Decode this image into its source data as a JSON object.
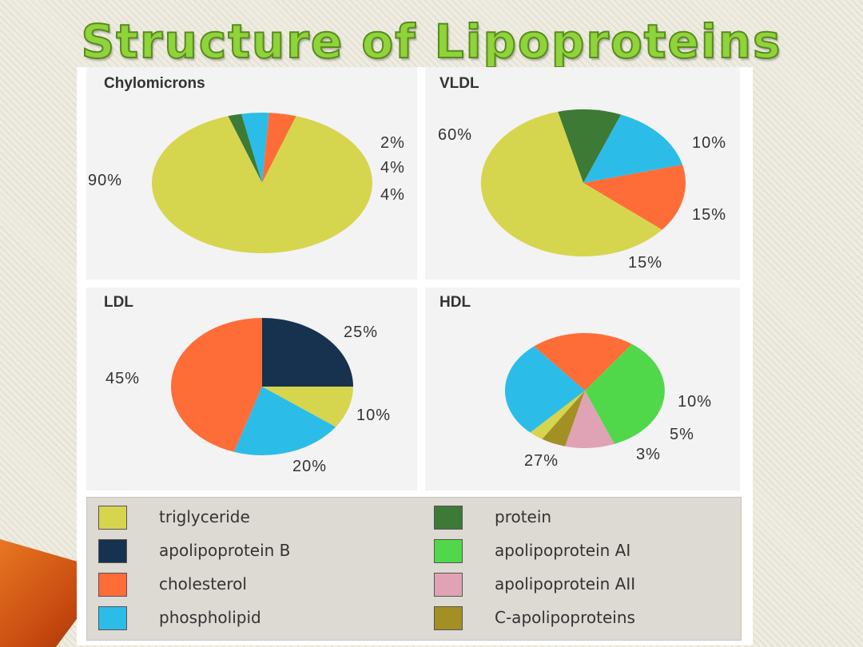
{
  "page": {
    "title": "Structure of Lipoproteins"
  },
  "colors": {
    "triglyceride": "#d6d54e",
    "apolipoprotein B": "#17324f",
    "cholesterol": "#fe6d38",
    "phospholipid": "#2bbde8",
    "protein": "#3d7a35",
    "apolipoprotein AI": "#50d84a",
    "apolipoprotein AII": "#dfa3b5",
    "C-apolipoproteins": "#a39025"
  },
  "legend": [
    {
      "label": "triglyceride",
      "color": "#d6d54e"
    },
    {
      "label": "apolipoprotein B",
      "color": "#17324f"
    },
    {
      "label": "cholesterol",
      "color": "#fe6d38"
    },
    {
      "label": "phospholipid",
      "color": "#2bbde8"
    },
    {
      "label": "protein",
      "color": "#3d7a35"
    },
    {
      "label": "apolipoprotein AI",
      "color": "#50d84a"
    },
    {
      "label": "apolipoprotein AII",
      "color": "#dfa3b5"
    },
    {
      "label": "C-apolipoproteins",
      "color": "#a39025"
    }
  ],
  "chart_data": [
    {
      "type": "pie",
      "title": "Chylomicrons",
      "slices": [
        {
          "name": "protein",
          "value": 2,
          "label": "2%",
          "color": "#3d7a35"
        },
        {
          "name": "phospholipid",
          "value": 4,
          "label": "4%",
          "color": "#2bbde8"
        },
        {
          "name": "cholesterol",
          "value": 4,
          "label": "4%",
          "color": "#fe6d38"
        },
        {
          "name": "triglyceride",
          "value": 90,
          "label": "90%",
          "color": "#d6d54e"
        }
      ]
    },
    {
      "type": "pie",
      "title": "VLDL",
      "slices": [
        {
          "name": "protein",
          "value": 10,
          "label": "10%",
          "color": "#3d7a35"
        },
        {
          "name": "phospholipid",
          "value": 15,
          "label": "15%",
          "color": "#2bbde8"
        },
        {
          "name": "cholesterol",
          "value": 15,
          "label": "15%",
          "color": "#fe6d38"
        },
        {
          "name": "triglyceride",
          "value": 60,
          "label": "60%",
          "color": "#d6d54e"
        }
      ]
    },
    {
      "type": "pie",
      "title": "LDL",
      "slices": [
        {
          "name": "apolipoprotein B",
          "value": 25,
          "label": "25%",
          "color": "#17324f"
        },
        {
          "name": "triglyceride",
          "value": 10,
          "label": "10%",
          "color": "#d6d54e"
        },
        {
          "name": "phospholipid",
          "value": 20,
          "label": "20%",
          "color": "#2bbde8"
        },
        {
          "name": "cholesterol",
          "value": 45,
          "label": "45%",
          "color": "#fe6d38"
        }
      ]
    },
    {
      "type": "pie",
      "title": "HDL",
      "slices": [
        {
          "name": "apolipoprotein AI",
          "value": 34,
          "label": "",
          "color": "#50d84a"
        },
        {
          "name": "apolipoprotein AII",
          "value": 10,
          "label": "10%",
          "color": "#dfa3b5"
        },
        {
          "name": "C-apolipoproteins",
          "value": 5,
          "label": "5%",
          "color": "#a39025"
        },
        {
          "name": "triglyceride",
          "value": 3,
          "label": "3%",
          "color": "#d6d54e"
        },
        {
          "name": "phospholipid",
          "value": 27,
          "label": "27%",
          "color": "#2bbde8"
        },
        {
          "name": "cholesterol",
          "value": 21,
          "label": "",
          "color": "#fe6d38"
        }
      ]
    }
  ]
}
